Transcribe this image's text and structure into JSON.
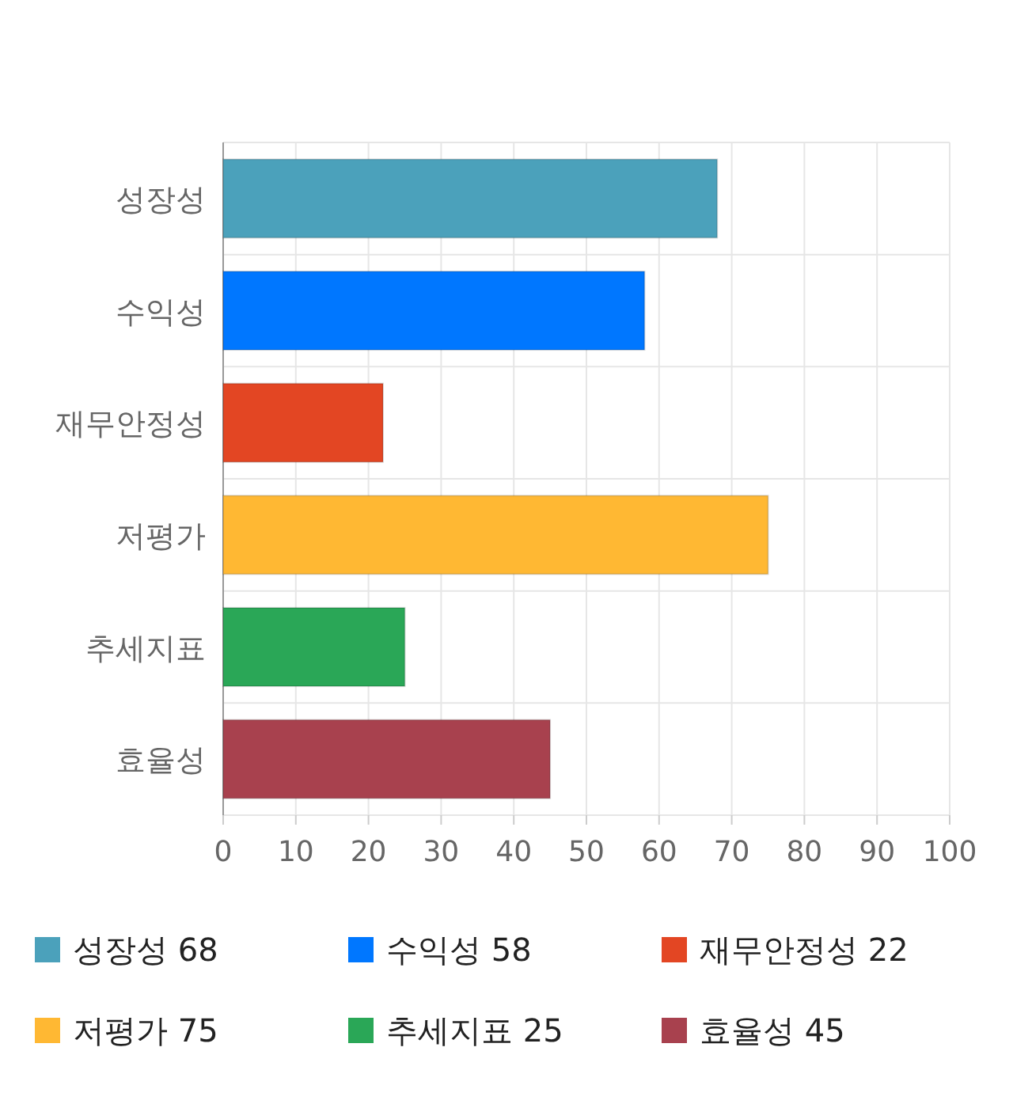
{
  "chart_data": {
    "type": "bar",
    "orientation": "horizontal",
    "stacked": true,
    "categories": [
      "성장성",
      "수익성",
      "재무안정성",
      "저평가",
      "추세지표",
      "효율성"
    ],
    "series": [
      {
        "name": "성장성 68",
        "color": "#4ba1bb",
        "values": [
          68,
          null,
          null,
          null,
          null,
          null
        ]
      },
      {
        "name": "수익성 58",
        "color": "#0077ff",
        "values": [
          null,
          58,
          null,
          null,
          null,
          null
        ]
      },
      {
        "name": "재무안정성 22",
        "color": "#e34623",
        "values": [
          null,
          null,
          22,
          null,
          null,
          null
        ]
      },
      {
        "name": "저평가 75",
        "color": "#ffb833",
        "values": [
          null,
          null,
          null,
          75,
          null,
          null
        ]
      },
      {
        "name": "추세지표 25",
        "color": "#2aa757",
        "values": [
          null,
          null,
          null,
          null,
          25,
          null
        ]
      },
      {
        "name": "효율성 45",
        "color": "#a8414e",
        "values": [
          null,
          null,
          null,
          null,
          null,
          45
        ]
      }
    ],
    "xlim": [
      0,
      100
    ],
    "xticks": [
      0,
      10,
      20,
      30,
      40,
      50,
      60,
      70,
      80,
      90,
      100
    ],
    "grid": true,
    "legend": "bottom"
  }
}
